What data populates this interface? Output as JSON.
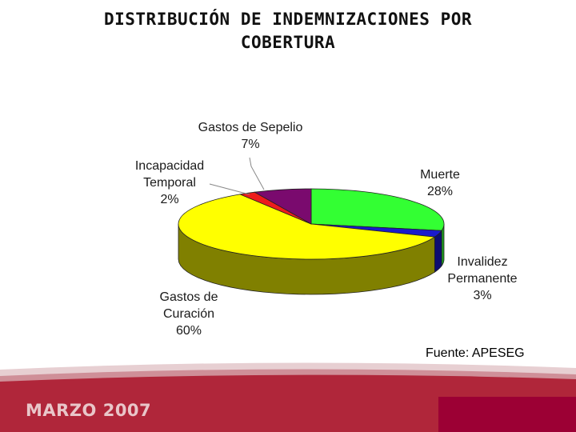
{
  "title": {
    "line1": "DISTRIBUCIÓN DE INDEMNIZACIONES POR",
    "line2": "COBERTURA"
  },
  "chart_data": {
    "type": "pie",
    "style": "3d",
    "slices": [
      {
        "label_lines": [
          "Muerte"
        ],
        "value": 28,
        "value_label": "28%",
        "color": "#33ff33",
        "side_color": "#1ea01e"
      },
      {
        "label_lines": [
          "Invalidez",
          "Permanente"
        ],
        "value": 3,
        "value_label": "3%",
        "color": "#1a1acc",
        "side_color": "#0d0d70"
      },
      {
        "label_lines": [
          "Gastos de",
          "Curación"
        ],
        "value": 60,
        "value_label": "60%",
        "color": "#ffff00",
        "side_color": "#808000"
      },
      {
        "label_lines": [
          "Incapacidad",
          "Temporal"
        ],
        "value": 2,
        "value_label": "2%",
        "color": "#ee1c1c",
        "side_color": "#8a0f0f"
      },
      {
        "label_lines": [
          "Gastos de Sepelio"
        ],
        "value": 7,
        "value_label": "7%",
        "color": "#7a0a6e",
        "side_color": "#3e0538"
      }
    ]
  },
  "source": "Fuente: APESEG",
  "footer": {
    "text": "MARZO 2007",
    "colors": {
      "band": "#b0263a",
      "accent_box": "#9c0034",
      "text": "#e9c6c9"
    }
  }
}
